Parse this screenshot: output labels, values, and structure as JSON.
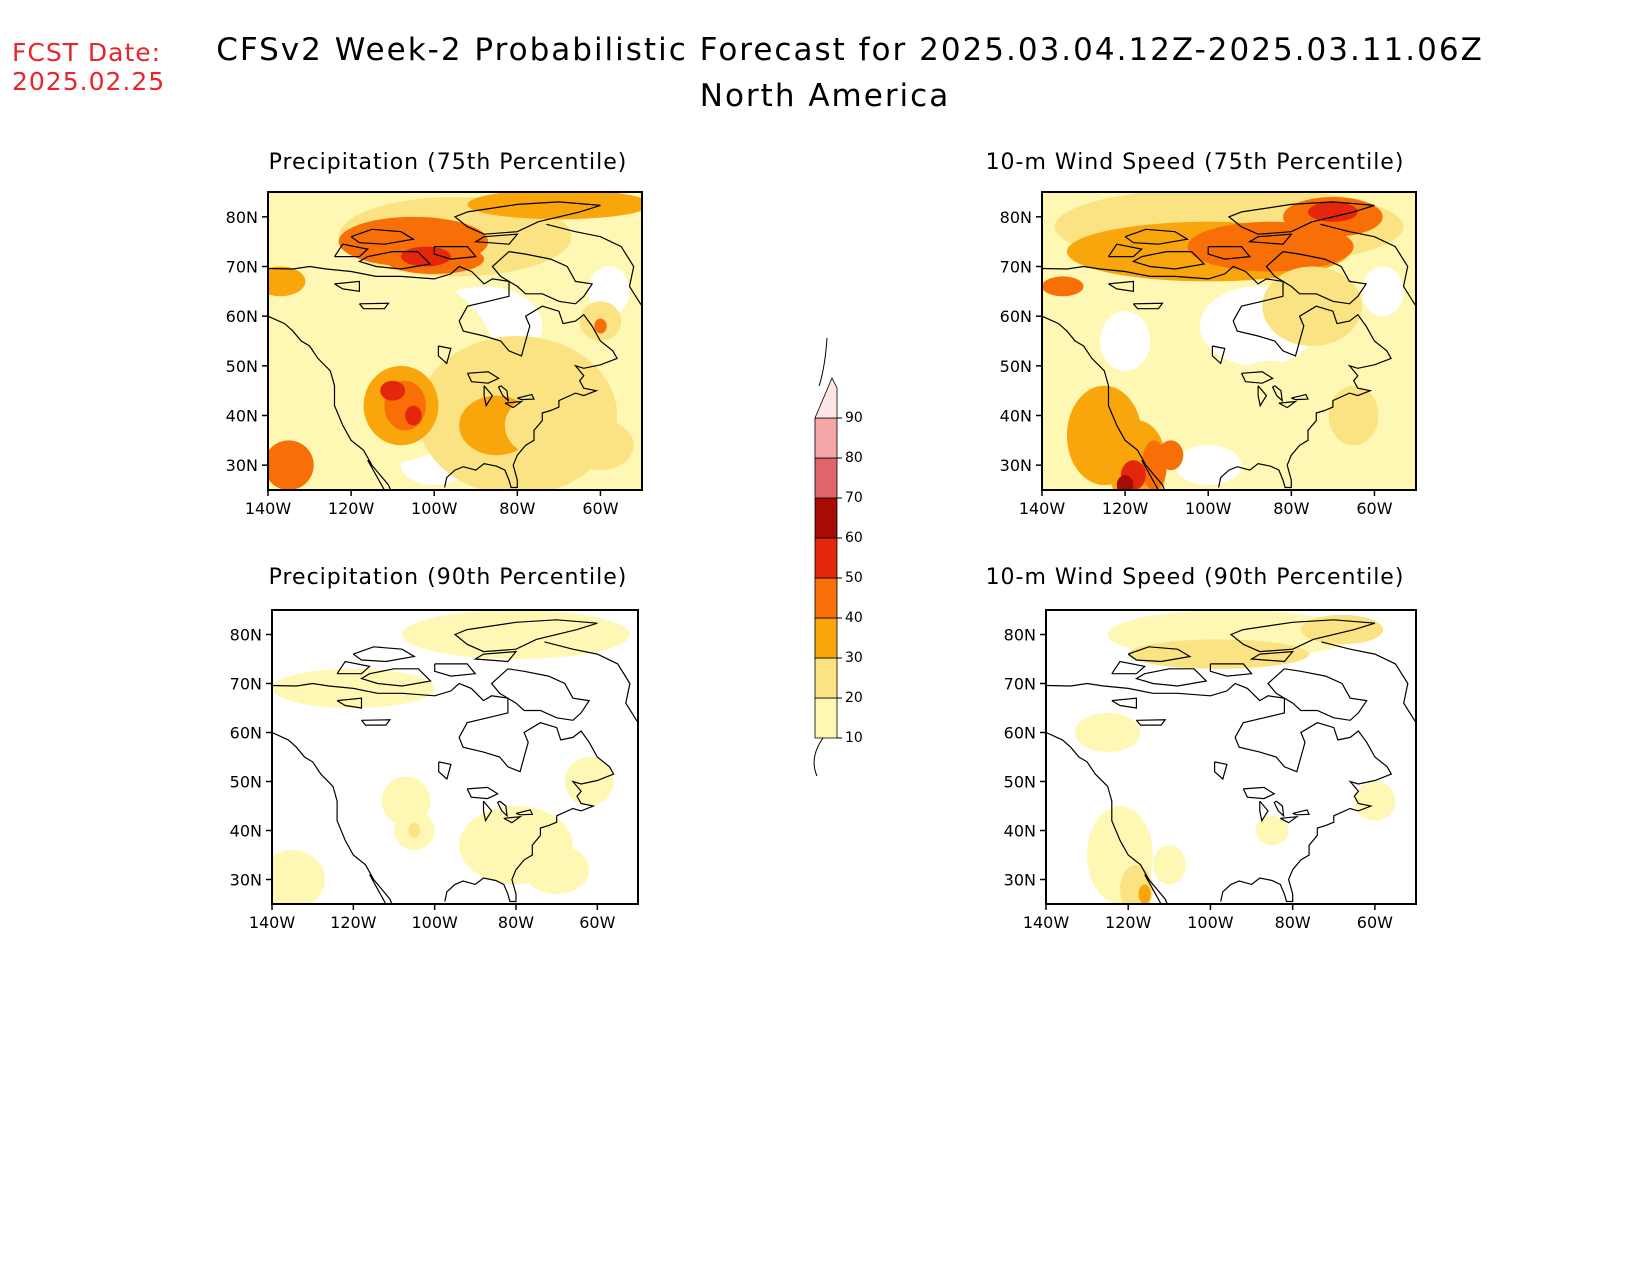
{
  "header": {
    "fcst_label": "FCST Date:",
    "fcst_date": "2025.02.25",
    "title": "CFSv2 Week-2 Probabilistic Forecast for 2025.03.04.12Z-2025.03.11.06Z",
    "subtitle": "North America"
  },
  "panels": [
    {
      "id": "precip75",
      "title": "Precipitation (75th Percentile)",
      "intensity": "high"
    },
    {
      "id": "wind75",
      "title": "10-m Wind Speed (75th Percentile)",
      "intensity": "high"
    },
    {
      "id": "precip90",
      "title": "Precipitation (90th Percentile)",
      "intensity": "low"
    },
    {
      "id": "wind90",
      "title": "10-m Wind Speed (90th Percentile)",
      "intensity": "low"
    }
  ],
  "axes": {
    "lat_labels": [
      "80N",
      "70N",
      "60N",
      "50N",
      "40N",
      "30N"
    ],
    "lon_labels": [
      "140W",
      "120W",
      "100W",
      "80W",
      "60W"
    ]
  },
  "colorbar": {
    "levels": [
      "10",
      "20",
      "30",
      "40",
      "50",
      "60",
      "70",
      "80",
      "90"
    ],
    "colors": [
      "#fff8b4",
      "#fbe383",
      "#f9a60c",
      "#f86f07",
      "#e3260c",
      "#a60b04",
      "#df6668",
      "#f5a6a6",
      "#fde6e6"
    ]
  }
}
